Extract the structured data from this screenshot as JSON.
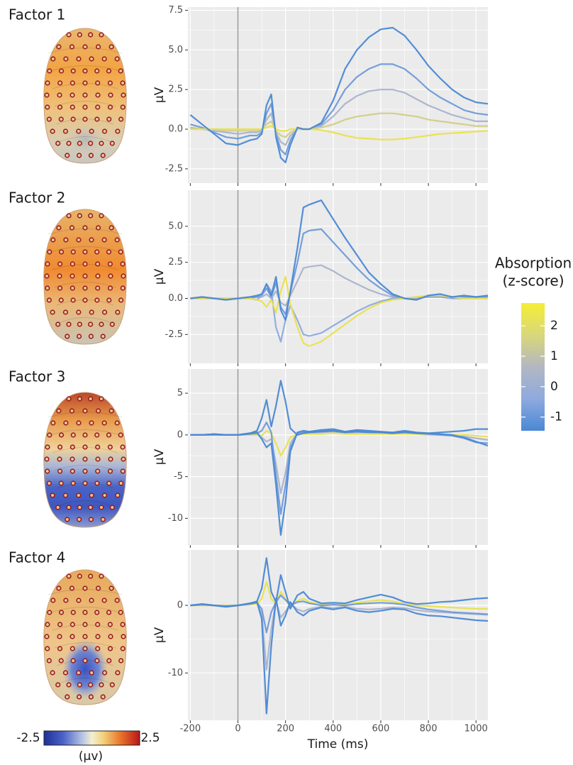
{
  "chart_data": [
    {
      "type": "line",
      "title": "Factor 1",
      "ylabel": "μV",
      "x": [
        -200,
        -150,
        -100,
        -50,
        0,
        50,
        80,
        100,
        120,
        140,
        160,
        180,
        200,
        220,
        250,
        275,
        300,
        350,
        400,
        450,
        500,
        550,
        600,
        650,
        700,
        750,
        800,
        850,
        900,
        950,
        1000,
        1050
      ],
      "xlim": [
        -210,
        1050
      ],
      "xticks": [
        -200,
        0,
        200,
        400,
        600,
        800,
        1000
      ],
      "xtick_labels": false,
      "ylim": [
        -3.4,
        7.7
      ],
      "yticks": [
        7.5,
        {
          "value": 5,
          "label": "5.0"
        },
        2.5,
        {
          "value": 0,
          "label": "0.0"
        },
        -2.5
      ],
      "vline": 0,
      "grid": true,
      "series": [
        {
          "color": "#6f9ad9",
          "values": [
            0.3,
            0.1,
            -0.2,
            -0.5,
            -0.6,
            -0.4,
            -0.4,
            -0.2,
            1.0,
            1.6,
            -0.3,
            -1.3,
            -1.6,
            -0.7,
            0.1,
            0,
            0,
            0.3,
            1.2,
            2.5,
            3.3,
            3.8,
            4.1,
            4.1,
            3.8,
            3.2,
            2.5,
            2.0,
            1.6,
            1.2,
            1.0,
            0.9
          ]
        },
        {
          "color": "#a9b3cb",
          "values": [
            0.1,
            0,
            -0.1,
            -0.2,
            -0.3,
            -0.2,
            -0.2,
            -0.1,
            0.6,
            1.0,
            -0.2,
            -0.8,
            -1.0,
            -0.4,
            0,
            0,
            0,
            0.2,
            0.8,
            1.6,
            2.1,
            2.4,
            2.5,
            2.5,
            2.3,
            1.9,
            1.5,
            1.2,
            0.9,
            0.7,
            0.5,
            0.5
          ]
        },
        {
          "color": "#cfcf86",
          "values": [
            0,
            0,
            0,
            -0.1,
            -0.1,
            -0.1,
            -0.1,
            0,
            0.3,
            0.5,
            -0.1,
            -0.4,
            -0.5,
            -0.2,
            0,
            0,
            0,
            0.1,
            0.3,
            0.6,
            0.8,
            0.9,
            1.0,
            1.0,
            0.9,
            0.8,
            0.6,
            0.5,
            0.4,
            0.3,
            0.2,
            0.2
          ]
        },
        {
          "color": "#e9e24c",
          "values": [
            0,
            0,
            0,
            0,
            0,
            0,
            0,
            0,
            0.1,
            0.2,
            0,
            -0.1,
            -0.1,
            0,
            0,
            0,
            0,
            -0.05,
            -0.2,
            -0.4,
            -0.55,
            -0.6,
            -0.65,
            -0.65,
            -0.6,
            -0.5,
            -0.4,
            -0.3,
            -0.25,
            -0.2,
            -0.15,
            -0.1
          ]
        },
        {
          "color": "#4a88d4",
          "values": [
            0.9,
            0.3,
            -0.3,
            -0.9,
            -1.0,
            -0.7,
            -0.6,
            -0.3,
            1.5,
            2.2,
            -0.5,
            -1.8,
            -2.1,
            -1.0,
            0.1,
            0,
            0,
            0.4,
            1.8,
            3.8,
            5.0,
            5.8,
            6.3,
            6.4,
            5.9,
            5.0,
            4.0,
            3.2,
            2.5,
            2.0,
            1.7,
            1.6
          ]
        }
      ]
    },
    {
      "type": "line",
      "title": "Factor 2",
      "ylabel": "μV",
      "x": [
        -200,
        -150,
        -100,
        -50,
        0,
        50,
        80,
        100,
        120,
        140,
        160,
        180,
        200,
        220,
        250,
        275,
        300,
        350,
        400,
        450,
        500,
        550,
        600,
        650,
        700,
        750,
        800,
        850,
        900,
        950,
        1000,
        1050
      ],
      "xlim": [
        -210,
        1050
      ],
      "xticks": [
        -200,
        0,
        200,
        400,
        600,
        800,
        1000
      ],
      "xtick_labels": false,
      "ylim": [
        -4.5,
        7.5
      ],
      "yticks": [
        {
          "value": 5,
          "label": "5.0"
        },
        2.5,
        {
          "value": 0,
          "label": "0.0"
        },
        -2.5
      ],
      "vline": 0,
      "grid": true,
      "series": [
        {
          "color": "#a9b3cb",
          "values": [
            0,
            0,
            0,
            0,
            0,
            0,
            0.1,
            0.1,
            0.3,
            0,
            0.5,
            -0.3,
            -0.5,
            0.2,
            1.2,
            2.1,
            2.2,
            2.3,
            1.9,
            1.4,
            1.0,
            0.6,
            0.3,
            0.1,
            0,
            0,
            0.1,
            0.1,
            0,
            0.1,
            0,
            0.1
          ]
        },
        {
          "color": "#6f9ad9",
          "values": [
            0,
            0.1,
            0,
            -0.1,
            0,
            0.1,
            0.1,
            0.2,
            0.7,
            0.1,
            1.1,
            -0.6,
            -1.1,
            0.4,
            2.5,
            4.5,
            4.7,
            4.8,
            3.9,
            3.0,
            2.1,
            1.3,
            0.7,
            0.2,
            0,
            -0.1,
            0.2,
            0.2,
            0.1,
            0.1,
            0.1,
            0.1
          ]
        },
        {
          "color": "#8eaade",
          "values": [
            0,
            0,
            0,
            0,
            0,
            0,
            -0.1,
            0.2,
            1.0,
            0.5,
            -2.0,
            -3.0,
            -1.5,
            -0.5,
            -1.5,
            -2.5,
            -2.6,
            -2.4,
            -1.9,
            -1.4,
            -0.9,
            -0.5,
            -0.2,
            0,
            0,
            0.1,
            0.1,
            0.1,
            0,
            0,
            0,
            0
          ]
        },
        {
          "color": "#e9e24c",
          "values": [
            0,
            0,
            0,
            0,
            0,
            0,
            -0.1,
            -0.2,
            -0.6,
            -0.1,
            -1.0,
            0.5,
            1.5,
            -0.4,
            -2.0,
            -3.1,
            -3.3,
            -3.0,
            -2.4,
            -1.8,
            -1.2,
            -0.7,
            -0.3,
            -0.1,
            0,
            0.1,
            0.2,
            0.2,
            0.1,
            0,
            0,
            0
          ]
        },
        {
          "color": "#4a88d4",
          "values": [
            0,
            0.1,
            0,
            -0.1,
            0,
            0.1,
            0.2,
            0.3,
            1.0,
            0.2,
            1.5,
            -0.8,
            -1.5,
            0.5,
            3.5,
            6.3,
            6.5,
            6.8,
            5.5,
            4.2,
            3.0,
            1.8,
            1.0,
            0.3,
            0,
            -0.1,
            0.2,
            0.3,
            0.1,
            0.2,
            0.1,
            0.2
          ]
        }
      ]
    },
    {
      "type": "line",
      "title": "Factor 3",
      "ylabel": "μV",
      "x": [
        -200,
        -150,
        -100,
        -50,
        0,
        50,
        80,
        100,
        120,
        140,
        160,
        180,
        200,
        220,
        250,
        275,
        300,
        350,
        400,
        450,
        500,
        550,
        600,
        650,
        700,
        750,
        800,
        850,
        900,
        950,
        1000,
        1050
      ],
      "xlim": [
        -210,
        1050
      ],
      "xticks": [
        -200,
        0,
        200,
        400,
        600,
        800,
        1000
      ],
      "xtick_labels": false,
      "ylim": [
        -13.2,
        7.9
      ],
      "yticks": [
        5,
        0,
        -5,
        -10
      ],
      "vline": 0,
      "grid": true,
      "series": [
        {
          "color": "#a9b3cb",
          "values": [
            0,
            0,
            0,
            0,
            0,
            0.1,
            0.1,
            -0.3,
            -0.8,
            -0.5,
            -3.5,
            -7.0,
            -4.5,
            -1.0,
            0.2,
            0.3,
            0.2,
            0.3,
            0.4,
            0.2,
            0.3,
            0.3,
            0.2,
            0.2,
            0.3,
            0.2,
            0.1,
            0,
            0,
            -0.2,
            -0.4,
            -0.6
          ]
        },
        {
          "color": "#e9e24c",
          "values": [
            0,
            0,
            0,
            0,
            0,
            0,
            0,
            -0.1,
            0.5,
            0.2,
            -1.0,
            -2.5,
            -1.5,
            -0.3,
            0.1,
            0.1,
            0.1,
            0.1,
            0.2,
            0.1,
            0.1,
            0.1,
            0.1,
            0.1,
            0.1,
            0.1,
            0,
            0,
            0,
            0,
            -0.1,
            -0.2
          ]
        },
        {
          "color": "#6f9ad9",
          "values": [
            0,
            0,
            0,
            0,
            0,
            0.1,
            0.2,
            0.5,
            1.5,
            0.3,
            -4.8,
            -9.5,
            -6.0,
            -1.5,
            0.2,
            0.4,
            0.3,
            0.5,
            0.5,
            0.3,
            0.5,
            0.4,
            0.3,
            0.2,
            0.4,
            0.2,
            0.1,
            0,
            -0.1,
            -0.4,
            -0.9,
            -1.0
          ]
        },
        {
          "color": "#4a88d4",
          "values": [
            0,
            0,
            0.1,
            0,
            0,
            0.2,
            0.5,
            2.0,
            4.2,
            1.0,
            3.5,
            6.5,
            4.0,
            0.8,
            0,
            0.2,
            0.3,
            0.4,
            0.5,
            0.3,
            0.4,
            0.3,
            0.3,
            0.2,
            0.3,
            0.2,
            0.2,
            0.3,
            0.4,
            0.5,
            0.7,
            0.7
          ]
        },
        {
          "color": "#4a88d4",
          "values": [
            0,
            0,
            0.1,
            0,
            0,
            0.2,
            0.3,
            -0.5,
            -1.5,
            -1.0,
            -6.0,
            -12.0,
            -8.0,
            -2.0,
            0.3,
            0.5,
            0.4,
            0.6,
            0.7,
            0.4,
            0.6,
            0.5,
            0.4,
            0.3,
            0.5,
            0.3,
            0.2,
            0.1,
            0,
            -0.3,
            -0.8,
            -1.3
          ]
        }
      ]
    },
    {
      "type": "line",
      "title": "Factor 4",
      "ylabel": "μV",
      "xlabel": "Time (ms)",
      "x": [
        -200,
        -150,
        -100,
        -50,
        0,
        50,
        80,
        100,
        120,
        140,
        160,
        180,
        200,
        220,
        250,
        275,
        300,
        350,
        400,
        450,
        500,
        550,
        600,
        650,
        700,
        750,
        800,
        850,
        900,
        950,
        1000,
        1050
      ],
      "xlim": [
        -210,
        1050
      ],
      "xticks": [
        -200,
        0,
        200,
        400,
        600,
        800,
        1000
      ],
      "xtick_labels": true,
      "ylim": [
        -17,
        8.2
      ],
      "yticks": [
        0,
        -10
      ],
      "vline": 0,
      "grid": true,
      "series": [
        {
          "color": "#a9b3cb",
          "values": [
            0,
            0.1,
            0,
            -0.1,
            0,
            0.2,
            0.3,
            -1.2,
            -9.5,
            -3.5,
            0.6,
            -1.8,
            -0.9,
            0.3,
            -0.6,
            -0.9,
            -0.5,
            -0.2,
            -0.4,
            -0.2,
            -0.5,
            -0.6,
            -0.5,
            -0.3,
            -0.4,
            -0.7,
            -0.9,
            -1.0,
            -1.1,
            -1.2,
            -1.3,
            -1.4
          ]
        },
        {
          "color": "#e9e24c",
          "values": [
            0,
            0,
            0,
            0,
            0,
            0.1,
            0.2,
            1.0,
            3.5,
            1.0,
            0.2,
            2.0,
            1.0,
            -0.2,
            0.7,
            1.0,
            0.5,
            0.1,
            0.2,
            0.1,
            0.4,
            0.6,
            0.8,
            0.6,
            0.2,
            0,
            -0.1,
            -0.2,
            -0.3,
            -0.4,
            -0.5,
            -0.5
          ]
        },
        {
          "color": "#6f9ad9",
          "values": [
            0,
            0.1,
            0,
            -0.1,
            0,
            0.2,
            0.4,
            -0.5,
            -4.0,
            -1.0,
            0.5,
            1.5,
            0.8,
            0,
            0.5,
            0.6,
            0.3,
            0,
            0.1,
            0,
            0.2,
            0.3,
            0.4,
            0.3,
            0.1,
            -0.3,
            -0.6,
            -0.8,
            -1.0,
            -1.1,
            -1.2,
            -1.3
          ]
        },
        {
          "color": "#4a88d4",
          "values": [
            0,
            0.2,
            0,
            -0.2,
            0,
            0.3,
            0.6,
            2.5,
            7.0,
            2.0,
            0.5,
            4.5,
            2.0,
            -0.5,
            1.5,
            2.0,
            1.0,
            0.3,
            0.4,
            0.3,
            0.8,
            1.2,
            1.6,
            1.2,
            0.5,
            0.2,
            0.3,
            0.5,
            0.6,
            0.8,
            1.0,
            1.1
          ]
        },
        {
          "color": "#4a88d4",
          "values": [
            0,
            0.2,
            0,
            -0.2,
            0,
            0.3,
            0.5,
            -2.0,
            -16.0,
            -6.0,
            1.0,
            -3.0,
            -1.5,
            0.5,
            -1.0,
            -1.5,
            -0.8,
            -0.3,
            -0.6,
            -0.3,
            -0.8,
            -1.0,
            -0.8,
            -0.5,
            -0.6,
            -1.2,
            -1.5,
            -1.6,
            -1.8,
            -2.0,
            -2.2,
            -2.3
          ]
        }
      ]
    }
  ],
  "colorbar": {
    "title": [
      "Absorption",
      "(z-score)"
    ],
    "lim": [
      -1.45,
      2.75
    ],
    "ticks": [
      2,
      1,
      0,
      -1
    ],
    "colors": [
      "#4a88d4",
      "#8eaade",
      "#b3b7c2",
      "#d9d77a",
      "#f5ee36"
    ]
  },
  "topo_scale": {
    "min": -2.5,
    "max": 2.5,
    "unit": "(μv)"
  }
}
